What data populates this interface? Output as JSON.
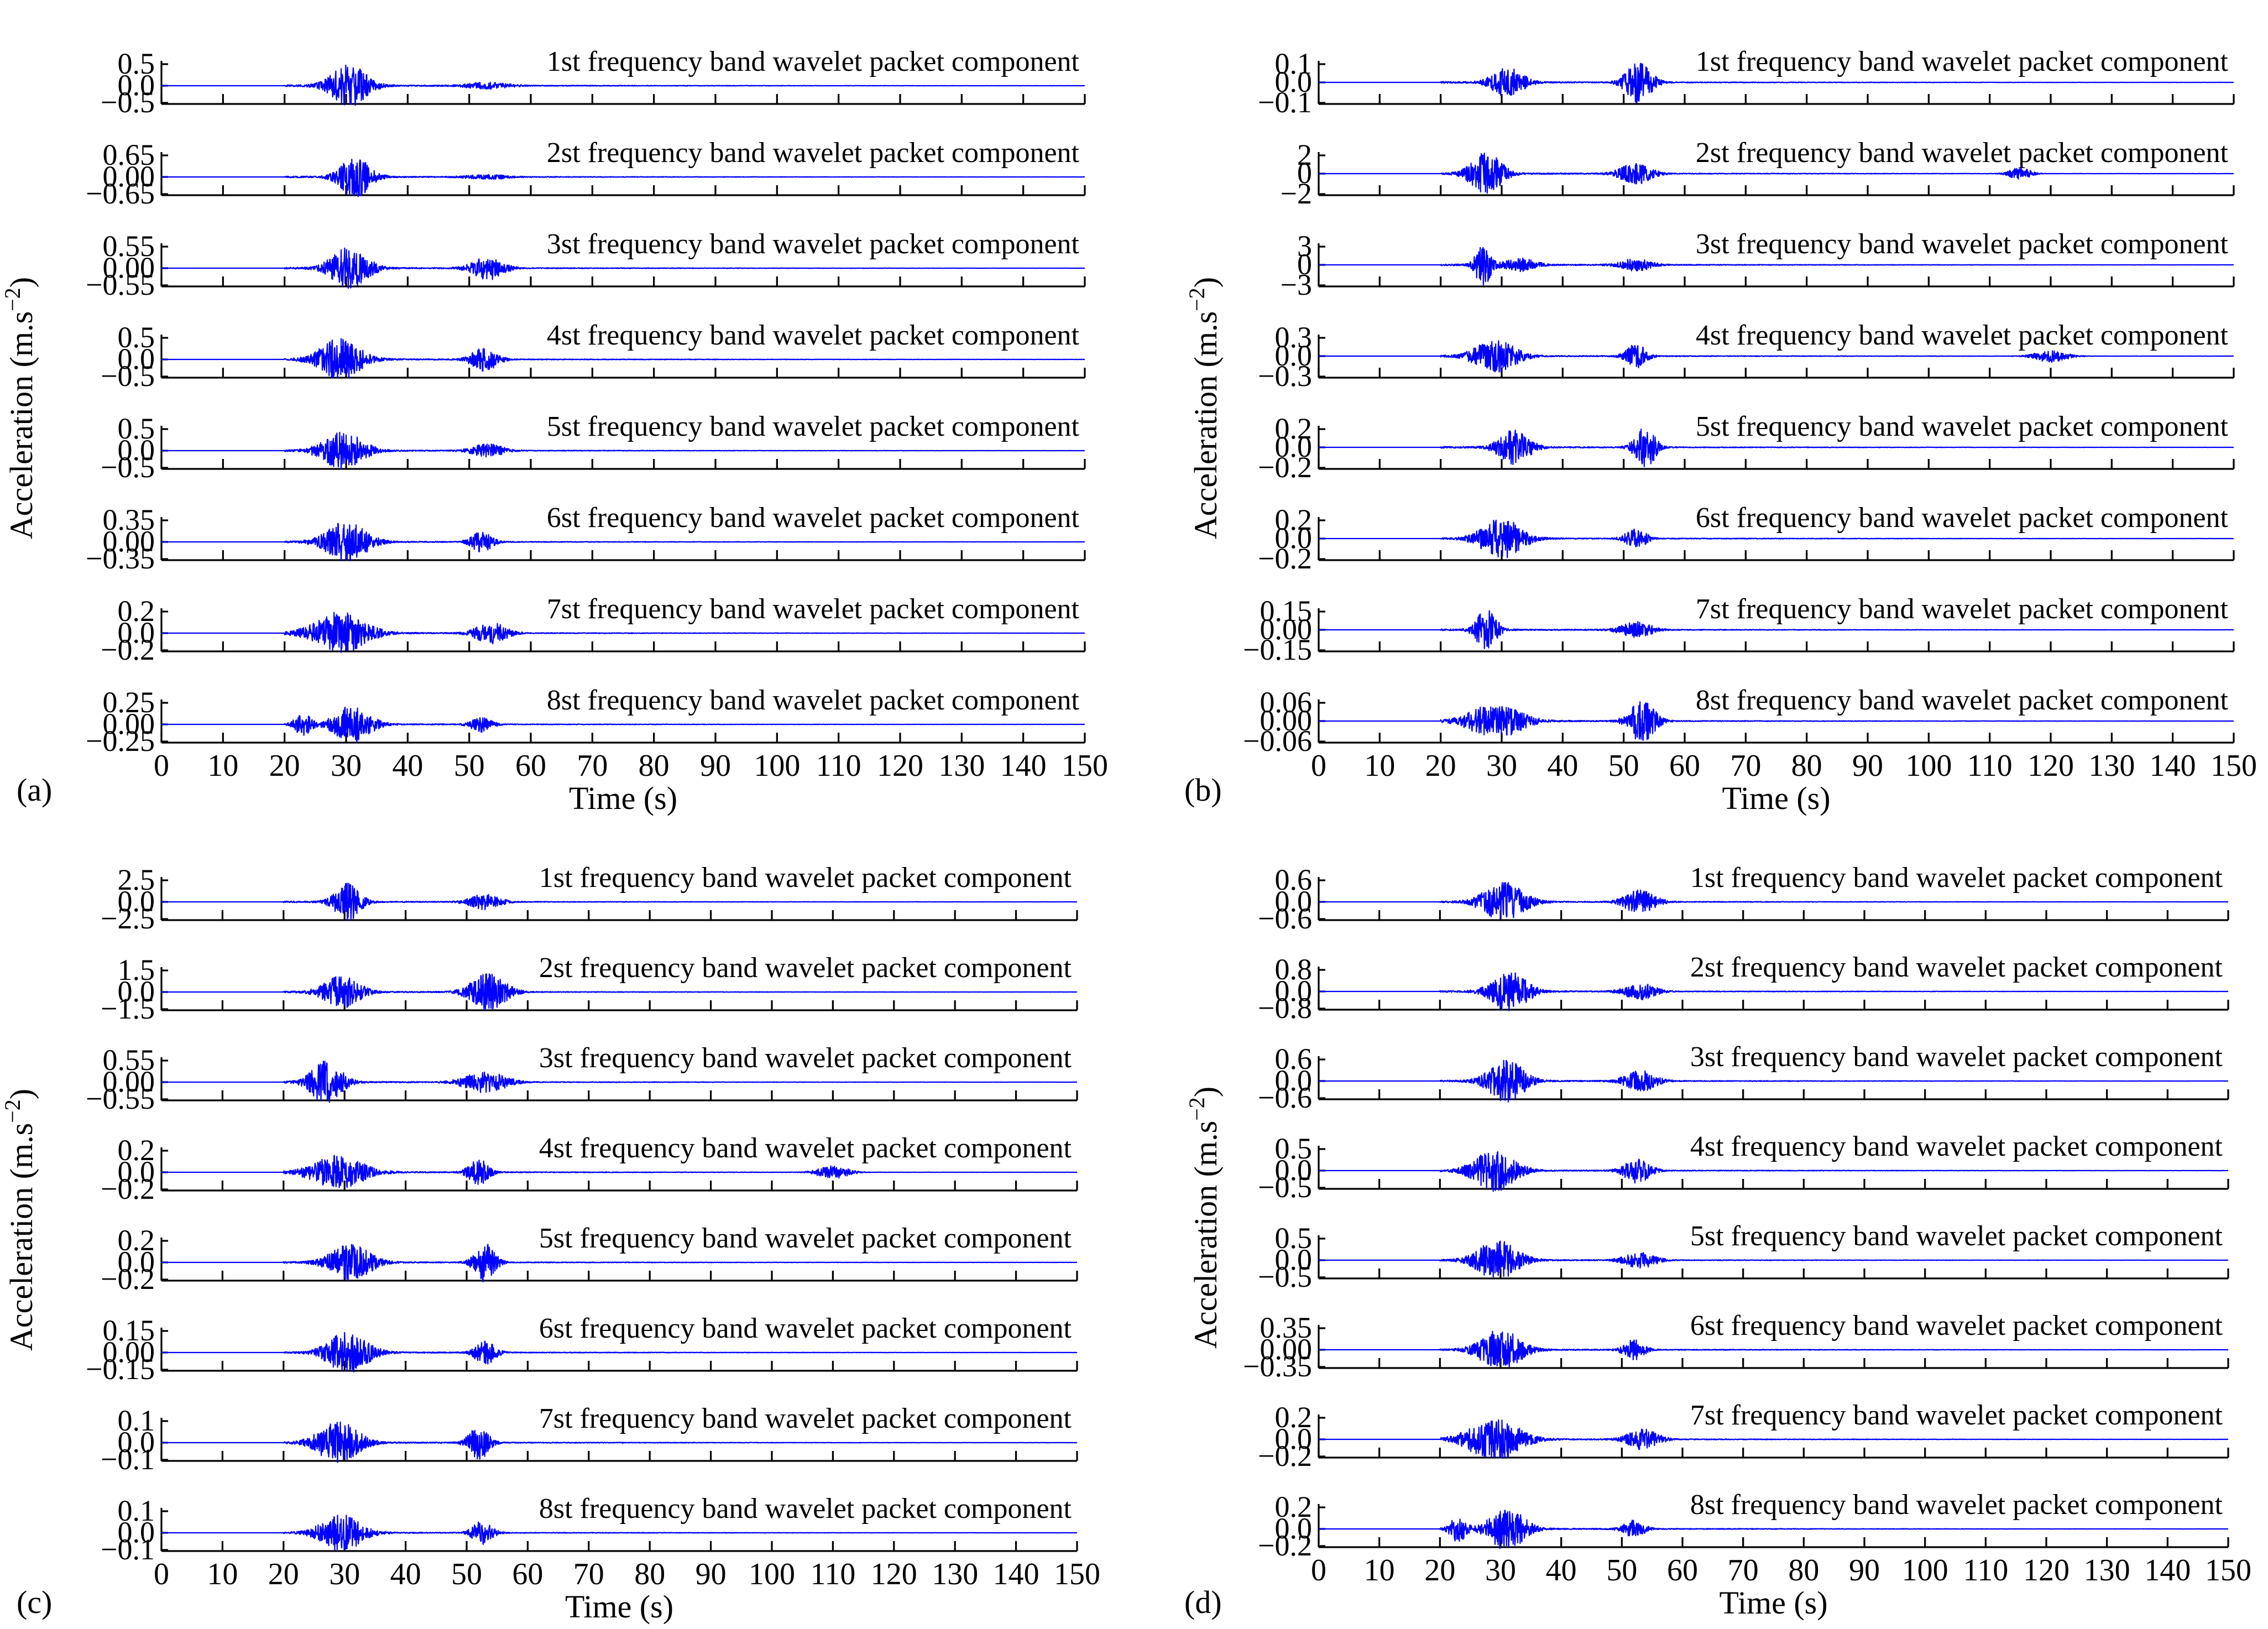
{
  "figure": {
    "colors": {
      "signal": "#0000ff",
      "axes": "#000000",
      "background": "#ffffff"
    }
  },
  "chart_data": [
    {
      "type": "line",
      "panel_label": "(a)",
      "xlabel": "Time (s)",
      "ylabel": "Acceleration (m.s−2)",
      "xlim": [
        0,
        150
      ],
      "xticks": [
        "0",
        "10",
        "20",
        "30",
        "40",
        "50",
        "60",
        "70",
        "80",
        "90",
        "100",
        "110",
        "120",
        "130",
        "140",
        "150"
      ],
      "subplots": [
        {
          "title": "1st frequency band wavelet packet component",
          "yticks": [
            "0.5",
            "0.0",
            "−0.5"
          ],
          "ylim": [
            -0.5,
            0.5
          ],
          "peak_amplitude": 0.45,
          "bursts": [
            {
              "t": 30.5,
              "amp": 1.0,
              "width": 3.5
            },
            {
              "t": 53,
              "amp": 0.15,
              "width": 4
            }
          ]
        },
        {
          "title": "2st frequency band wavelet packet component",
          "yticks": [
            "0.65",
            "0.00",
            "−0.65"
          ],
          "ylim": [
            -0.65,
            0.65
          ],
          "peak_amplitude": 0.55,
          "bursts": [
            {
              "t": 31.5,
              "amp": 1.0,
              "width": 3
            },
            {
              "t": 53,
              "amp": 0.1,
              "width": 4
            }
          ]
        },
        {
          "title": "3st frequency band wavelet packet component",
          "yticks": [
            "0.55",
            "0.00",
            "−0.55"
          ],
          "ylim": [
            -0.55,
            0.55
          ],
          "peak_amplitude": 0.5,
          "bursts": [
            {
              "t": 30.5,
              "amp": 1.0,
              "width": 3.5
            },
            {
              "t": 53,
              "amp": 0.55,
              "width": 3
            }
          ]
        },
        {
          "title": "4st frequency band wavelet packet component",
          "yticks": [
            "0.5",
            "0.0",
            "−0.5"
          ],
          "ylim": [
            -0.5,
            0.5
          ],
          "peak_amplitude": 0.45,
          "bursts": [
            {
              "t": 29,
              "amp": 1.0,
              "width": 4
            },
            {
              "t": 52.5,
              "amp": 0.55,
              "width": 2.5
            }
          ]
        },
        {
          "title": "5st frequency band wavelet packet component",
          "yticks": [
            "0.5",
            "0.0",
            "−0.5"
          ],
          "ylim": [
            -0.5,
            0.5
          ],
          "peak_amplitude": 0.4,
          "bursts": [
            {
              "t": 29.5,
              "amp": 1.0,
              "width": 4
            },
            {
              "t": 53,
              "amp": 0.35,
              "width": 3
            }
          ]
        },
        {
          "title": "6st frequency band wavelet packet component",
          "yticks": [
            "0.35",
            "0.00",
            "−0.35"
          ],
          "ylim": [
            -0.35,
            0.35
          ],
          "peak_amplitude": 0.3,
          "bursts": [
            {
              "t": 30,
              "amp": 1.0,
              "width": 4
            },
            {
              "t": 52,
              "amp": 0.5,
              "width": 2
            }
          ]
        },
        {
          "title": "7st frequency band wavelet packet component",
          "yticks": [
            "0.2",
            "0.0",
            "−0.2"
          ],
          "ylim": [
            -0.2,
            0.2
          ],
          "peak_amplitude": 0.18,
          "bursts": [
            {
              "t": 29,
              "amp": 1.0,
              "width": 5
            },
            {
              "t": 53.5,
              "amp": 0.5,
              "width": 3
            }
          ]
        },
        {
          "title": "8st frequency band wavelet packet component",
          "yticks": [
            "0.25",
            "0.00",
            "−0.25"
          ],
          "ylim": [
            -0.25,
            0.25
          ],
          "peak_amplitude": 0.2,
          "bursts": [
            {
              "t": 31,
              "amp": 1.0,
              "width": 3.5
            },
            {
              "t": 23,
              "amp": 0.6,
              "width": 1.5
            },
            {
              "t": 52,
              "amp": 0.4,
              "width": 2
            }
          ]
        }
      ]
    },
    {
      "type": "line",
      "panel_label": "(b)",
      "xlabel": "Time (s)",
      "ylabel": "Acceleration (m.s−2)",
      "xlim": [
        0,
        150
      ],
      "xticks": [
        "0",
        "10",
        "20",
        "30",
        "40",
        "50",
        "60",
        "70",
        "80",
        "90",
        "100",
        "110",
        "120",
        "130",
        "140",
        "150"
      ],
      "subplots": [
        {
          "title": "1st frequency band wavelet packet component",
          "yticks": [
            "0.1",
            "0.0",
            "−0.1"
          ],
          "ylim": [
            -0.1,
            0.1
          ],
          "peak_amplitude": 0.09,
          "bursts": [
            {
              "t": 31,
              "amp": 0.7,
              "width": 3
            },
            {
              "t": 52.5,
              "amp": 1.0,
              "width": 2.5
            }
          ]
        },
        {
          "title": "2st frequency band wavelet packet component",
          "yticks": [
            "2",
            "0",
            "−2"
          ],
          "ylim": [
            -2,
            2
          ],
          "peak_amplitude": 1.8,
          "bursts": [
            {
              "t": 27.5,
              "amp": 1.0,
              "width": 3
            },
            {
              "t": 52,
              "amp": 0.5,
              "width": 3
            },
            {
              "t": 115,
              "amp": 0.3,
              "width": 2
            }
          ]
        },
        {
          "title": "3st frequency band wavelet packet component",
          "yticks": [
            "3",
            "0",
            "−3"
          ],
          "ylim": [
            -3,
            3
          ],
          "peak_amplitude": 2.7,
          "bursts": [
            {
              "t": 27,
              "amp": 1.0,
              "width": 1.5
            },
            {
              "t": 33,
              "amp": 0.3,
              "width": 3
            },
            {
              "t": 52,
              "amp": 0.3,
              "width": 3
            }
          ]
        },
        {
          "title": "4st frequency band wavelet packet component",
          "yticks": [
            "0.3",
            "0.0",
            "−0.3"
          ],
          "ylim": [
            -0.3,
            0.3
          ],
          "peak_amplitude": 0.26,
          "bursts": [
            {
              "t": 29,
              "amp": 0.8,
              "width": 4
            },
            {
              "t": 52,
              "amp": 0.6,
              "width": 2
            },
            {
              "t": 120,
              "amp": 0.3,
              "width": 3
            }
          ]
        },
        {
          "title": "5st frequency band wavelet packet component",
          "yticks": [
            "0.2",
            "0.0",
            "−0.2"
          ],
          "ylim": [
            -0.2,
            0.2
          ],
          "peak_amplitude": 0.18,
          "bursts": [
            {
              "t": 32,
              "amp": 0.8,
              "width": 3
            },
            {
              "t": 53.5,
              "amp": 1.0,
              "width": 2
            }
          ]
        },
        {
          "title": "6st frequency band wavelet packet component",
          "yticks": [
            "0.2",
            "0.0",
            "−0.2"
          ],
          "ylim": [
            -0.2,
            0.2
          ],
          "peak_amplitude": 0.17,
          "bursts": [
            {
              "t": 30,
              "amp": 1.0,
              "width": 4
            },
            {
              "t": 52,
              "amp": 0.5,
              "width": 2
            }
          ]
        },
        {
          "title": "7st frequency band wavelet packet component",
          "yticks": [
            "0.15",
            "0.00",
            "−0.15"
          ],
          "ylim": [
            -0.15,
            0.15
          ],
          "peak_amplitude": 0.13,
          "bursts": [
            {
              "t": 27.5,
              "amp": 1.0,
              "width": 2
            },
            {
              "t": 52,
              "amp": 0.4,
              "width": 3
            }
          ]
        },
        {
          "title": "8st frequency band wavelet packet component",
          "yticks": [
            "0.06",
            "0.00",
            "−0.06"
          ],
          "ylim": [
            -0.06,
            0.06
          ],
          "peak_amplitude": 0.055,
          "bursts": [
            {
              "t": 29,
              "amp": 0.8,
              "width": 5
            },
            {
              "t": 53,
              "amp": 1.0,
              "width": 2.5
            }
          ]
        }
      ]
    },
    {
      "type": "line",
      "panel_label": "(c)",
      "xlabel": "Time (s)",
      "ylabel": "Acceleration (m.s−2)",
      "xlim": [
        0,
        150
      ],
      "xticks": [
        "0",
        "10",
        "20",
        "30",
        "40",
        "50",
        "60",
        "70",
        "80",
        "90",
        "100",
        "110",
        "120",
        "130",
        "140",
        "150"
      ],
      "subplots": [
        {
          "title": "1st frequency band wavelet packet component",
          "yticks": [
            "2.5",
            "0.0",
            "−2.5"
          ],
          "ylim": [
            -2.5,
            2.5
          ],
          "peak_amplitude": 2.0,
          "bursts": [
            {
              "t": 30.5,
              "amp": 1.0,
              "width": 2.5
            },
            {
              "t": 53,
              "amp": 0.4,
              "width": 3
            }
          ]
        },
        {
          "title": "2st frequency band wavelet packet component",
          "yticks": [
            "1.5",
            "0.0",
            "−1.5"
          ],
          "ylim": [
            -1.5,
            1.5
          ],
          "peak_amplitude": 1.3,
          "bursts": [
            {
              "t": 29.5,
              "amp": 0.8,
              "width": 3.5
            },
            {
              "t": 53.5,
              "amp": 0.9,
              "width": 3.5
            }
          ]
        },
        {
          "title": "3st frequency band wavelet packet component",
          "yticks": [
            "0.55",
            "0.00",
            "−0.55"
          ],
          "ylim": [
            -0.55,
            0.55
          ],
          "peak_amplitude": 0.5,
          "bursts": [
            {
              "t": 27,
              "amp": 1.0,
              "width": 3
            },
            {
              "t": 53,
              "amp": 0.5,
              "width": 4
            }
          ]
        },
        {
          "title": "4st frequency band wavelet packet component",
          "yticks": [
            "0.2",
            "0.0",
            "−0.2"
          ],
          "ylim": [
            -0.2,
            0.2
          ],
          "peak_amplitude": 0.18,
          "bursts": [
            {
              "t": 29,
              "amp": 0.8,
              "width": 5
            },
            {
              "t": 52,
              "amp": 0.6,
              "width": 2
            },
            {
              "t": 110,
              "amp": 0.3,
              "width": 3
            }
          ]
        },
        {
          "title": "5st frequency band wavelet packet component",
          "yticks": [
            "0.2",
            "0.0",
            "−0.2"
          ],
          "ylim": [
            -0.2,
            0.2
          ],
          "peak_amplitude": 0.17,
          "bursts": [
            {
              "t": 31,
              "amp": 0.9,
              "width": 4
            },
            {
              "t": 53,
              "amp": 1.0,
              "width": 2
            }
          ]
        },
        {
          "title": "6st frequency band wavelet packet component",
          "yticks": [
            "0.15",
            "0.00",
            "−0.15"
          ],
          "ylim": [
            -0.15,
            0.15
          ],
          "peak_amplitude": 0.13,
          "bursts": [
            {
              "t": 30.5,
              "amp": 1.0,
              "width": 4
            },
            {
              "t": 53,
              "amp": 0.6,
              "width": 2
            }
          ]
        },
        {
          "title": "7st frequency band wavelet packet component",
          "yticks": [
            "0.1",
            "0.0",
            "−0.1"
          ],
          "ylim": [
            -0.1,
            0.1
          ],
          "peak_amplitude": 0.09,
          "bursts": [
            {
              "t": 29,
              "amp": 1.0,
              "width": 4
            },
            {
              "t": 52,
              "amp": 0.8,
              "width": 2
            }
          ]
        },
        {
          "title": "8st frequency band wavelet packet component",
          "yticks": [
            "0.1",
            "0.0",
            "−0.1"
          ],
          "ylim": [
            -0.1,
            0.1
          ],
          "peak_amplitude": 0.08,
          "bursts": [
            {
              "t": 29.5,
              "amp": 1.0,
              "width": 4
            },
            {
              "t": 52.5,
              "amp": 0.6,
              "width": 2
            }
          ]
        }
      ]
    },
    {
      "type": "line",
      "panel_label": "(d)",
      "xlabel": "Time (s)",
      "ylabel": "Acceleration (m.s−2)",
      "xlim": [
        0,
        150
      ],
      "xticks": [
        "0",
        "10",
        "20",
        "30",
        "40",
        "50",
        "60",
        "70",
        "80",
        "90",
        "100",
        "110",
        "120",
        "130",
        "140",
        "150"
      ],
      "subplots": [
        {
          "title": "1st frequency band wavelet packet component",
          "yticks": [
            "0.6",
            "0.0",
            "−0.6"
          ],
          "ylim": [
            -0.6,
            0.6
          ],
          "peak_amplitude": 0.5,
          "bursts": [
            {
              "t": 30.5,
              "amp": 1.0,
              "width": 4
            },
            {
              "t": 53,
              "amp": 0.6,
              "width": 3
            }
          ]
        },
        {
          "title": "2st frequency band wavelet packet component",
          "yticks": [
            "0.8",
            "0.0",
            "−0.8"
          ],
          "ylim": [
            -0.8,
            0.8
          ],
          "peak_amplitude": 0.7,
          "bursts": [
            {
              "t": 31.5,
              "amp": 1.0,
              "width": 3.5
            },
            {
              "t": 53,
              "amp": 0.4,
              "width": 3
            }
          ]
        },
        {
          "title": "3st frequency band wavelet packet component",
          "yticks": [
            "0.6",
            "0.0",
            "−0.6"
          ],
          "ylim": [
            -0.6,
            0.6
          ],
          "peak_amplitude": 0.55,
          "bursts": [
            {
              "t": 31,
              "amp": 1.0,
              "width": 3.5
            },
            {
              "t": 53,
              "amp": 0.5,
              "width": 3
            }
          ]
        },
        {
          "title": "4st frequency band wavelet packet component",
          "yticks": [
            "0.5",
            "0.0",
            "−0.5"
          ],
          "ylim": [
            -0.5,
            0.5
          ],
          "peak_amplitude": 0.45,
          "bursts": [
            {
              "t": 29,
              "amp": 1.0,
              "width": 4
            },
            {
              "t": 52.5,
              "amp": 0.6,
              "width": 2.5
            }
          ]
        },
        {
          "title": "5st frequency band wavelet packet component",
          "yticks": [
            "0.5",
            "0.0",
            "−0.5"
          ],
          "ylim": [
            -0.5,
            0.5
          ],
          "peak_amplitude": 0.42,
          "bursts": [
            {
              "t": 29.5,
              "amp": 1.0,
              "width": 4
            },
            {
              "t": 53,
              "amp": 0.4,
              "width": 3
            }
          ]
        },
        {
          "title": "6st frequency band wavelet packet component",
          "yticks": [
            "0.35",
            "0.00",
            "−0.35"
          ],
          "ylim": [
            -0.35,
            0.35
          ],
          "peak_amplitude": 0.3,
          "bursts": [
            {
              "t": 30,
              "amp": 1.0,
              "width": 4
            },
            {
              "t": 52,
              "amp": 0.5,
              "width": 2
            }
          ]
        },
        {
          "title": "7st frequency band wavelet packet component",
          "yticks": [
            "0.2",
            "0.0",
            "−0.2"
          ],
          "ylim": [
            -0.2,
            0.2
          ],
          "peak_amplitude": 0.18,
          "bursts": [
            {
              "t": 29,
              "amp": 1.0,
              "width": 5
            },
            {
              "t": 53.5,
              "amp": 0.5,
              "width": 3
            }
          ]
        },
        {
          "title": "8st frequency band wavelet packet component",
          "yticks": [
            "0.2",
            "0.0",
            "−0.2"
          ],
          "ylim": [
            -0.2,
            0.2
          ],
          "peak_amplitude": 0.18,
          "bursts": [
            {
              "t": 31,
              "amp": 1.0,
              "width": 3.5
            },
            {
              "t": 23,
              "amp": 0.6,
              "width": 1.5
            },
            {
              "t": 52,
              "amp": 0.4,
              "width": 2
            }
          ]
        }
      ]
    }
  ]
}
